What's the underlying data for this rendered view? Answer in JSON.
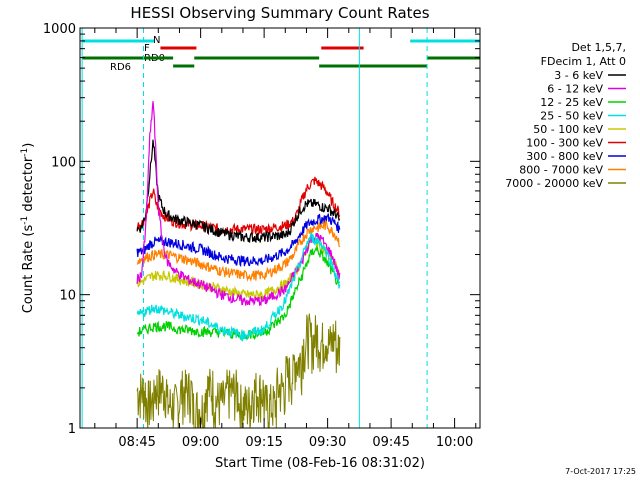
{
  "chart_data": {
    "type": "line",
    "title": "HESSI Observing Summary Count Rates",
    "xlabel": "Start Time (08-Feb-16 08:31:02)",
    "ylabel_main": "Count Rate (s",
    "ylabel_sup1": "-1",
    "ylabel_mid": " detector",
    "ylabel_sup2": "-1",
    "ylabel_end": ")",
    "yscale": "log",
    "ylim": [
      1,
      1000
    ],
    "xlim_minutes": [
      31.5,
      126
    ],
    "x_ticks": [
      "08:45",
      "09:00",
      "09:15",
      "09:30",
      "09:45",
      "10:00"
    ],
    "y_ticks": [
      "1",
      "10",
      "100",
      "1000"
    ],
    "legend_header": [
      "Det 1,5,7,",
      "FDecim 1, Att 0"
    ],
    "footer": "7-Oct-2017 17:25",
    "flags": [
      {
        "label": "N",
        "color": "#00e0e0"
      },
      {
        "label": "F",
        "color": "#e00000"
      },
      {
        "label": "RD0",
        "color": "#007000"
      },
      {
        "label": "RD6",
        "color": "#007000"
      }
    ],
    "series": [
      {
        "name": "3 - 6 keV",
        "color": "#000000"
      },
      {
        "name": "6 - 12 keV",
        "color": "#e000e0"
      },
      {
        "name": "12 - 25 keV",
        "color": "#00d000"
      },
      {
        "name": "25 - 50 keV",
        "color": "#00e0e0"
      },
      {
        "name": "50 - 100 keV",
        "color": "#c8c800"
      },
      {
        "name": "100 - 300 keV",
        "color": "#e00000"
      },
      {
        "name": "300 - 800 keV",
        "color": "#0000e0"
      },
      {
        "name": "800 - 7000 keV",
        "color": "#ff8000"
      },
      {
        "name": "7000 - 20000 keV",
        "color": "#808000"
      }
    ],
    "curves": [
      {
        "series": 5,
        "points": [
          [
            45,
            33
          ],
          [
            46,
            34
          ],
          [
            47,
            38
          ],
          [
            48,
            50
          ],
          [
            48.8,
            60
          ],
          [
            49.5,
            48
          ],
          [
            50,
            45
          ],
          [
            51,
            40
          ],
          [
            53,
            36
          ],
          [
            56,
            34
          ],
          [
            60,
            33
          ],
          [
            65,
            31
          ],
          [
            70,
            31
          ],
          [
            75,
            31
          ],
          [
            80,
            33
          ],
          [
            82,
            36
          ],
          [
            83,
            42
          ],
          [
            84,
            52
          ],
          [
            85,
            62
          ],
          [
            86,
            68
          ],
          [
            87,
            72
          ],
          [
            88,
            68
          ],
          [
            89,
            64
          ],
          [
            90,
            58
          ],
          [
            91,
            50
          ],
          [
            92,
            45
          ],
          [
            93,
            40
          ]
        ]
      },
      {
        "series": 0,
        "points": [
          [
            45,
            31
          ],
          [
            46,
            32
          ],
          [
            47,
            40
          ],
          [
            48,
            80
          ],
          [
            48.8,
            145
          ],
          [
            49.5,
            80
          ],
          [
            50,
            55
          ],
          [
            51,
            45
          ],
          [
            52,
            40
          ],
          [
            54,
            37
          ],
          [
            57,
            35
          ],
          [
            60,
            33
          ],
          [
            65,
            29
          ],
          [
            70,
            27
          ],
          [
            75,
            27
          ],
          [
            80,
            28
          ],
          [
            81,
            30
          ],
          [
            82,
            35
          ],
          [
            83,
            40
          ],
          [
            84,
            45
          ],
          [
            85,
            48
          ],
          [
            86,
            48
          ],
          [
            87,
            48
          ],
          [
            88,
            47
          ],
          [
            89,
            45
          ],
          [
            90,
            45
          ],
          [
            91,
            42
          ],
          [
            92,
            40
          ],
          [
            93,
            35
          ]
        ]
      },
      {
        "series": 6,
        "points": [
          [
            45,
            21
          ],
          [
            46,
            21
          ],
          [
            47,
            22
          ],
          [
            48,
            24
          ],
          [
            49,
            25
          ],
          [
            50,
            25
          ],
          [
            52,
            25
          ],
          [
            55,
            24
          ],
          [
            60,
            22
          ],
          [
            65,
            19
          ],
          [
            70,
            18
          ],
          [
            75,
            18
          ],
          [
            80,
            21
          ],
          [
            82,
            24
          ],
          [
            84,
            30
          ],
          [
            85,
            33
          ],
          [
            86,
            35
          ],
          [
            87,
            36
          ],
          [
            88,
            37
          ],
          [
            89,
            37
          ],
          [
            90,
            38
          ],
          [
            91,
            36
          ],
          [
            92,
            34
          ],
          [
            93,
            30
          ]
        ]
      },
      {
        "series": 7,
        "points": [
          [
            45,
            18
          ],
          [
            47,
            19
          ],
          [
            49,
            20
          ],
          [
            52,
            20
          ],
          [
            55,
            19
          ],
          [
            60,
            17
          ],
          [
            65,
            15
          ],
          [
            70,
            14
          ],
          [
            75,
            14
          ],
          [
            80,
            17
          ],
          [
            82,
            20
          ],
          [
            84,
            26
          ],
          [
            85,
            29
          ],
          [
            86,
            31
          ],
          [
            87,
            32
          ],
          [
            88,
            32
          ],
          [
            89,
            33
          ],
          [
            90,
            33
          ],
          [
            91,
            30
          ],
          [
            92,
            28
          ],
          [
            93,
            24
          ]
        ]
      },
      {
        "series": 4,
        "points": [
          [
            45,
            12
          ],
          [
            47,
            13
          ],
          [
            49,
            14
          ],
          [
            52,
            14
          ],
          [
            55,
            13
          ],
          [
            60,
            12
          ],
          [
            65,
            11
          ],
          [
            70,
            10
          ],
          [
            75,
            10
          ],
          [
            80,
            12
          ],
          [
            82,
            14
          ],
          [
            84,
            18
          ],
          [
            85,
            22
          ],
          [
            86,
            26
          ],
          [
            87,
            25
          ],
          [
            88,
            24
          ],
          [
            89,
            22
          ],
          [
            90,
            20
          ],
          [
            91,
            18
          ],
          [
            92,
            16
          ],
          [
            93,
            14
          ]
        ]
      },
      {
        "series": 1,
        "points": [
          [
            45,
            13
          ],
          [
            46,
            14
          ],
          [
            47,
            30
          ],
          [
            48,
            150
          ],
          [
            48.8,
            290
          ],
          [
            49.5,
            100
          ],
          [
            50,
            45
          ],
          [
            51,
            25
          ],
          [
            52,
            18
          ],
          [
            54,
            15
          ],
          [
            57,
            13
          ],
          [
            60,
            12
          ],
          [
            65,
            10
          ],
          [
            70,
            9
          ],
          [
            75,
            9
          ],
          [
            80,
            11
          ],
          [
            82,
            14
          ],
          [
            84,
            18
          ],
          [
            85,
            22
          ],
          [
            86,
            26
          ],
          [
            87,
            27
          ],
          [
            88,
            27
          ],
          [
            89,
            25
          ],
          [
            90,
            22
          ],
          [
            91,
            20
          ],
          [
            92,
            16
          ],
          [
            93,
            13
          ]
        ]
      },
      {
        "series": 2,
        "points": [
          [
            45,
            5.2
          ],
          [
            47,
            5.5
          ],
          [
            49,
            5.8
          ],
          [
            52,
            5.8
          ],
          [
            55,
            5.5
          ],
          [
            60,
            5.3
          ],
          [
            65,
            5.2
          ],
          [
            70,
            5.0
          ],
          [
            75,
            5.2
          ],
          [
            80,
            7
          ],
          [
            82,
            10
          ],
          [
            84,
            14
          ],
          [
            85,
            17
          ],
          [
            86,
            20
          ],
          [
            87,
            22
          ],
          [
            88,
            21
          ],
          [
            89,
            19
          ],
          [
            90,
            17
          ],
          [
            91,
            15
          ],
          [
            92,
            13
          ],
          [
            93,
            11
          ]
        ]
      },
      {
        "series": 3,
        "points": [
          [
            45,
            7
          ],
          [
            47,
            7.5
          ],
          [
            49,
            8
          ],
          [
            52,
            7.5
          ],
          [
            55,
            7
          ],
          [
            60,
            6.5
          ],
          [
            65,
            5.5
          ],
          [
            70,
            5
          ],
          [
            75,
            5.5
          ],
          [
            80,
            9
          ],
          [
            82,
            13
          ],
          [
            84,
            19
          ],
          [
            85,
            24
          ],
          [
            86,
            27
          ],
          [
            87,
            26
          ],
          [
            88,
            25
          ],
          [
            89,
            23
          ],
          [
            90,
            20
          ],
          [
            91,
            17
          ],
          [
            92,
            14
          ],
          [
            93,
            11
          ]
        ]
      }
    ],
    "bg_noise_steps": [
      {
        "x": 45,
        "y": 1.9
      },
      {
        "x": 47,
        "y": 1.6
      },
      {
        "x": 49,
        "y": 2
      },
      {
        "x": 52,
        "y": 1.5
      },
      {
        "x": 55,
        "y": 1.9
      },
      {
        "x": 58,
        "y": 1.4
      },
      {
        "x": 61,
        "y": 2
      },
      {
        "x": 63,
        "y": 1.6
      },
      {
        "x": 66,
        "y": 1.9
      },
      {
        "x": 69,
        "y": 1.5
      },
      {
        "x": 72,
        "y": 1.9
      },
      {
        "x": 75,
        "y": 1.5
      },
      {
        "x": 78,
        "y": 2
      },
      {
        "x": 80,
        "y": 2.5
      },
      {
        "x": 82,
        "y": 3.2
      },
      {
        "x": 84,
        "y": 4.2
      },
      {
        "x": 85,
        "y": 5
      },
      {
        "x": 86,
        "y": 4.5
      },
      {
        "x": 87,
        "y": 5
      },
      {
        "x": 88,
        "y": 4.4
      },
      {
        "x": 89,
        "y": 4.9
      },
      {
        "x": 90,
        "y": 4.3
      },
      {
        "x": 91,
        "y": 4.8
      },
      {
        "x": 92,
        "y": 4.0
      },
      {
        "x": 93,
        "y": 3.2
      }
    ]
  }
}
